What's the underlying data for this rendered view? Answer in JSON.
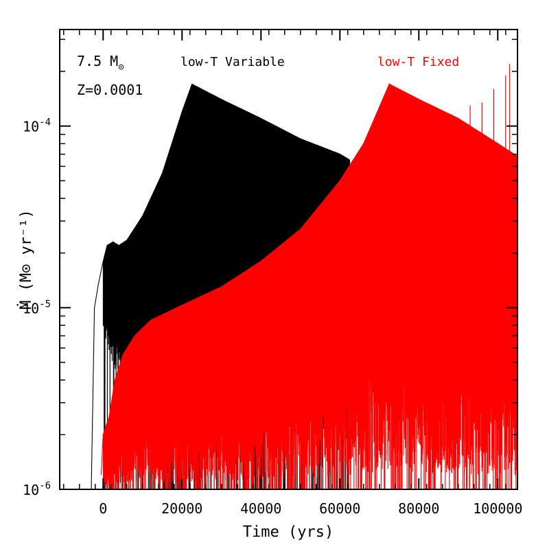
{
  "chart_data": {
    "type": "line",
    "xlabel": "Time (yrs)",
    "ylabel": "Ṁ (M⊙ yr⁻¹)",
    "xlim": [
      -11000,
      105000
    ],
    "ylim": [
      1e-06,
      0.00034
    ],
    "yscale": "log",
    "x_ticks": [
      {
        "value": 0,
        "label": "0"
      },
      {
        "value": 20000,
        "label": "20000"
      },
      {
        "value": 40000,
        "label": "40000"
      },
      {
        "value": 60000,
        "label": "60000"
      },
      {
        "value": 80000,
        "label": "80000"
      },
      {
        "value": 100000,
        "label": "100000"
      }
    ],
    "y_major_ticks": [
      {
        "value": 1e-06,
        "base": "10",
        "exp": "-6"
      },
      {
        "value": 1e-05,
        "base": "10",
        "exp": "-5"
      },
      {
        "value": 0.0001,
        "base": "10",
        "exp": "-4"
      }
    ],
    "annotations": {
      "mass": "7.5 M",
      "mass_symbol": "⊙",
      "metallicity": "Z=0.0001"
    },
    "series": [
      {
        "name": "low-T Variable",
        "color": "#000000",
        "upper_envelope": [
          [
            -3000,
            1e-06
          ],
          [
            -2200,
            1e-05
          ],
          [
            -1200,
            1.35e-05
          ],
          [
            0,
            1.8e-05
          ],
          [
            1000,
            2.2e-05
          ],
          [
            2500,
            2.3e-05
          ],
          [
            4000,
            2.2e-05
          ],
          [
            6000,
            2.35e-05
          ],
          [
            10000,
            3.2e-05
          ],
          [
            15000,
            5.5e-05
          ],
          [
            20000,
            0.00012
          ],
          [
            22500,
            0.00017
          ],
          [
            30000,
            0.00014
          ],
          [
            40000,
            0.00011
          ],
          [
            50000,
            8.5e-05
          ],
          [
            60000,
            7e-05
          ],
          [
            62500,
            6.5e-05
          ]
        ],
        "lower_envelope": [
          [
            0,
            7e-06
          ],
          [
            3000,
            4e-06
          ],
          [
            10000,
            3e-06
          ],
          [
            20000,
            2.5e-06
          ],
          [
            40000,
            2e-06
          ],
          [
            60000,
            1.5e-06
          ]
        ],
        "x_end": 62500
      },
      {
        "name": "low-T Fixed",
        "color": "#ff0000",
        "upper_envelope": [
          [
            -500,
            1.2e-06
          ],
          [
            0,
            2e-06
          ],
          [
            1500,
            2.5e-06
          ],
          [
            3000,
            4e-06
          ],
          [
            5000,
            5.5e-06
          ],
          [
            8000,
            7e-06
          ],
          [
            12000,
            8.5e-06
          ],
          [
            20000,
            1.03e-05
          ],
          [
            30000,
            1.3e-05
          ],
          [
            40000,
            1.8e-05
          ],
          [
            50000,
            2.7e-05
          ],
          [
            60000,
            5e-05
          ],
          [
            66000,
            8e-05
          ],
          [
            72500,
            0.00017
          ],
          [
            80000,
            0.00014
          ],
          [
            90000,
            0.00011
          ],
          [
            100000,
            8e-05
          ],
          [
            105000,
            6.8e-05
          ]
        ],
        "lower_envelope": [
          [
            0,
            1e-06
          ],
          [
            105000,
            1e-06
          ]
        ],
        "x_end": 105000
      }
    ]
  }
}
